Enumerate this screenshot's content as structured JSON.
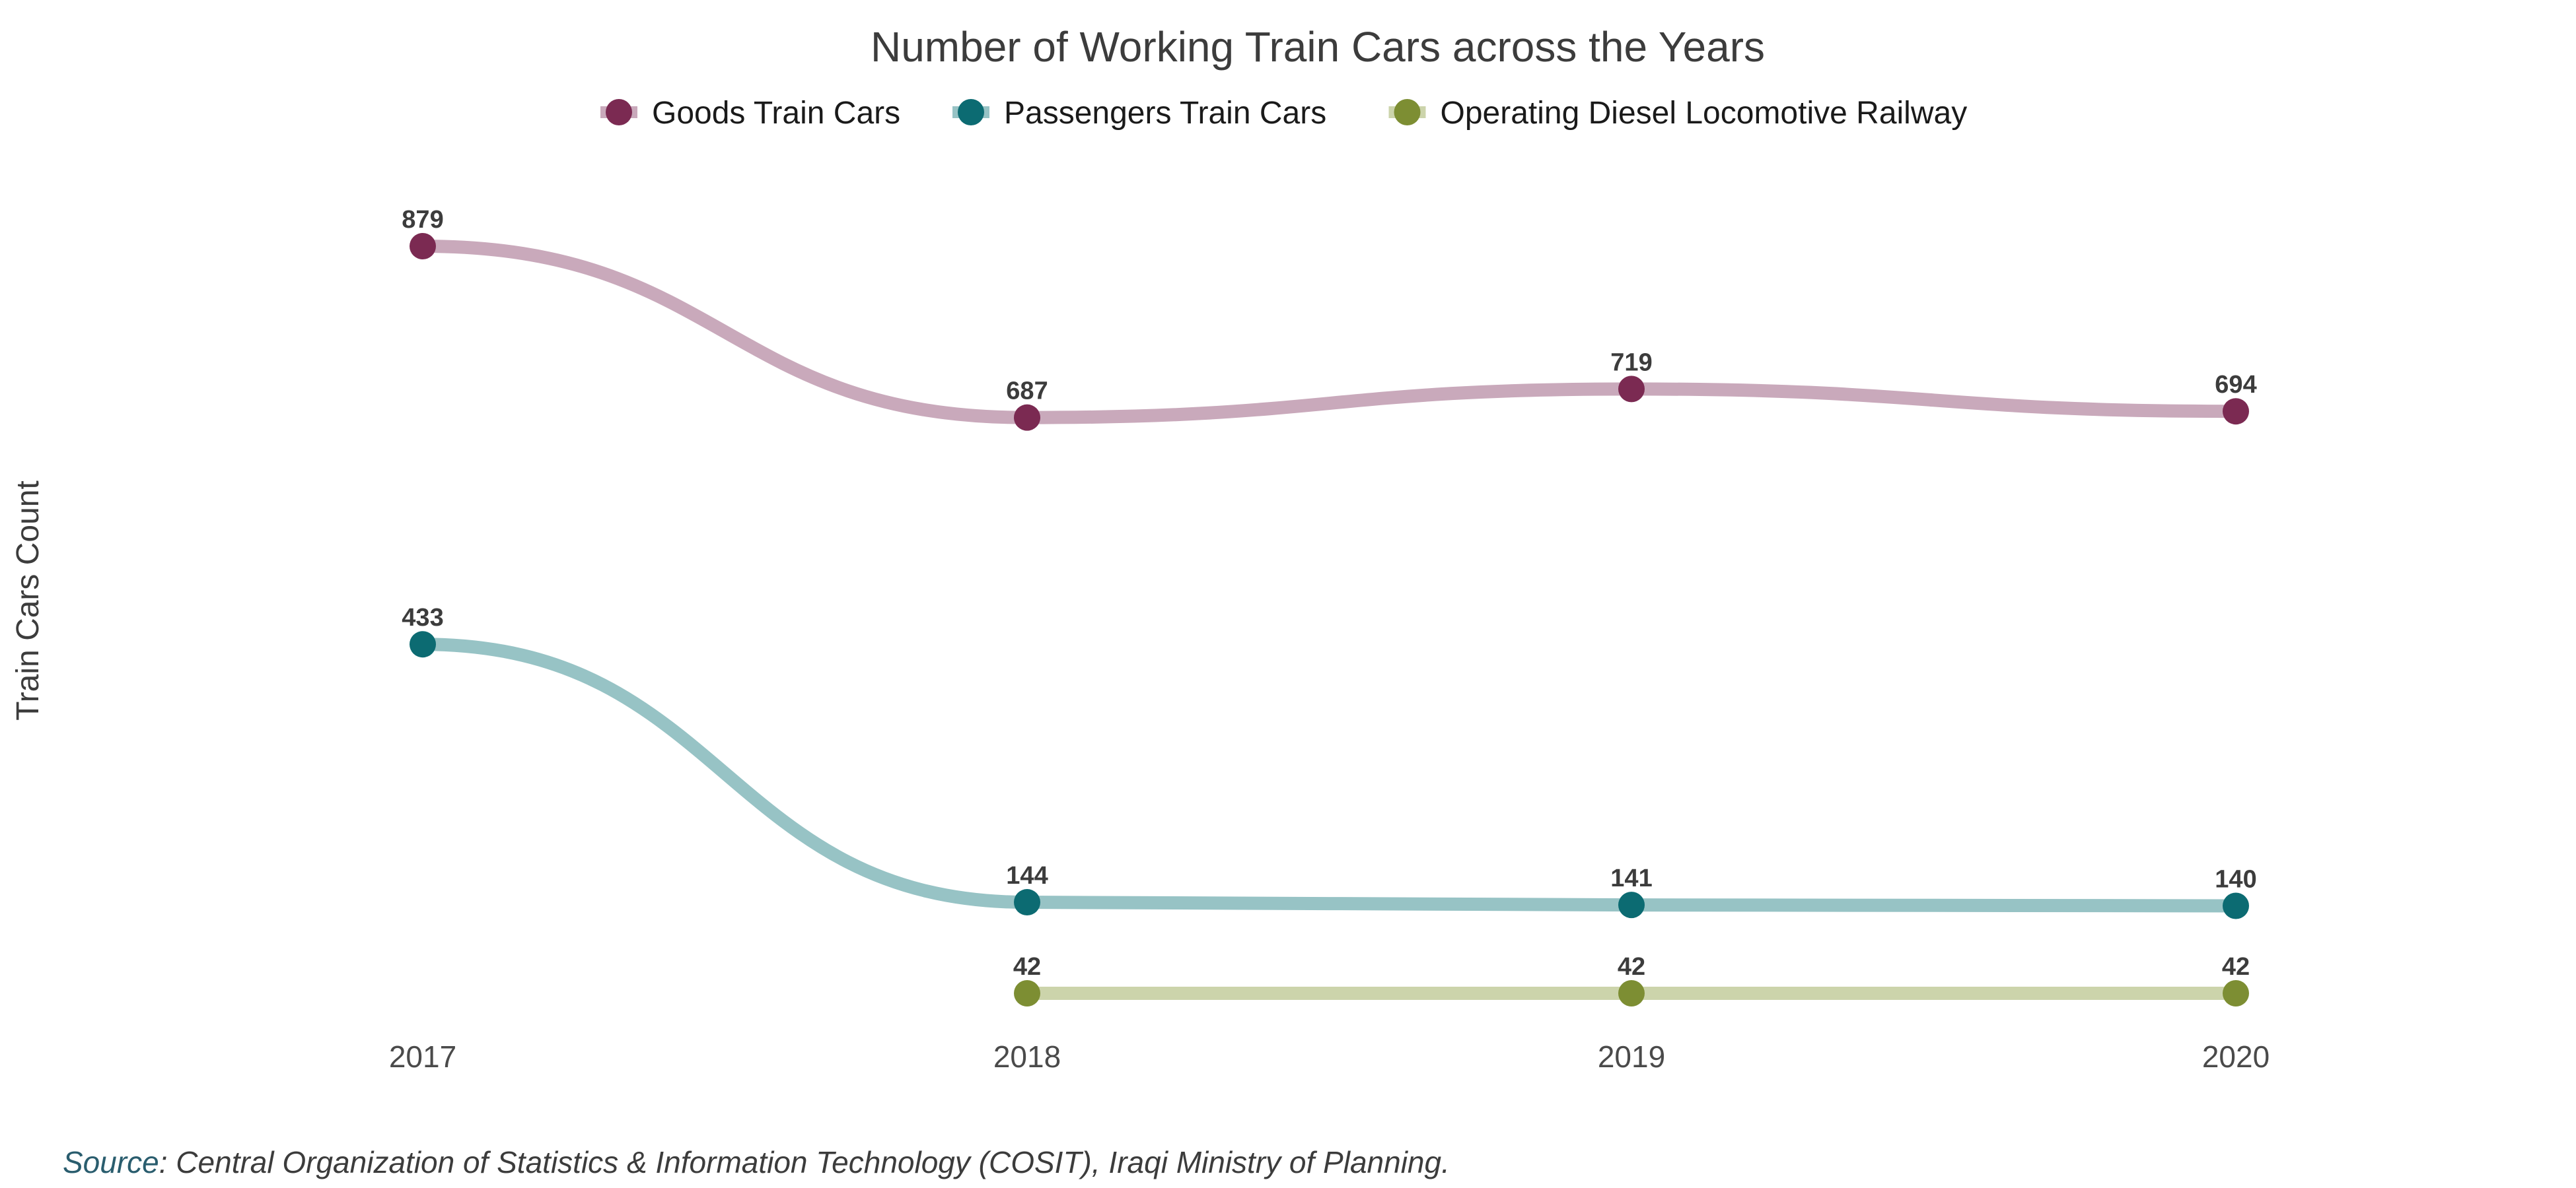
{
  "chart_data": {
    "type": "line",
    "title": "Number of Working Train Cars across the Years",
    "xlabel": "",
    "ylabel": "Train Cars Count",
    "x": [
      "2017",
      "2018",
      "2019",
      "2020"
    ],
    "ylim": [
      42,
      879
    ],
    "grid": false,
    "legend_position": "top",
    "series": [
      {
        "name": "Goods Train Cars",
        "values": [
          879,
          687,
          719,
          694
        ],
        "color": "#7b2a52",
        "line_color": "#c9a9bb"
      },
      {
        "name": "Passengers Train Cars",
        "values": [
          433,
          144,
          141,
          140
        ],
        "color": "#0c6b72",
        "line_color": "#97c3c5"
      },
      {
        "name": "Operating Diesel Locomotive Railway",
        "values": [
          null,
          42,
          42,
          42
        ],
        "color": "#7d8e33",
        "line_color": "#ccd4ab"
      }
    ]
  },
  "source": {
    "label": "Source",
    "text": ": Central Organization of Statistics & Information Technology (COSIT), Iraqi Ministry of Planning."
  }
}
